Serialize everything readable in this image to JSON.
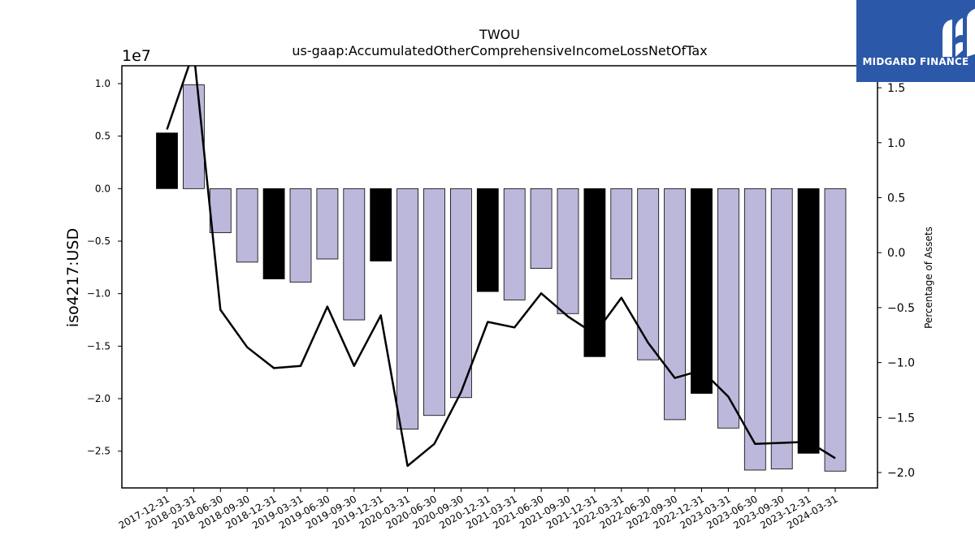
{
  "brand": {
    "name": "MIDGARD FINANCE",
    "bg_color": "#2b58a8"
  },
  "chart_data": {
    "type": "bar",
    "title": "TWOU",
    "subtitle": "us-gaap:AccumulatedOtherComprehensiveIncomeLossNetOfTax",
    "ylabel": "iso4217:USD",
    "y2label": "Percentage of Assets",
    "y_offset_label": "1e7",
    "ylim": [
      -28500000.0,
      11700000.0
    ],
    "y2lim": [
      -2.14,
      1.7
    ],
    "yticks": [
      -25000000.0,
      -20000000.0,
      -15000000.0,
      -10000000.0,
      -5000000.0,
      0,
      5000000.0,
      10000000.0
    ],
    "ytick_labels": [
      "−2.5",
      "−2.0",
      "−1.5",
      "−1.0",
      "−0.5",
      "0.0",
      "0.5",
      "1.0"
    ],
    "y2ticks": [
      -2.0,
      -1.5,
      -1.0,
      -0.5,
      0.0,
      0.5,
      1.0,
      1.5
    ],
    "y2tick_labels": [
      "−2.0",
      "−1.5",
      "−1.0",
      "−0.5",
      "0.0",
      "0.5",
      "1.0",
      "1.5"
    ],
    "categories": [
      "2017-12-31",
      "2018-03-31",
      "2018-06-30",
      "2018-09-30",
      "2018-12-31",
      "2019-03-31",
      "2019-06-30",
      "2019-09-30",
      "2019-12-31",
      "2020-03-31",
      "2020-06-30",
      "2020-09-30",
      "2020-12-31",
      "2021-03-31",
      "2021-06-30",
      "2021-09-30",
      "2021-12-31",
      "2022-03-31",
      "2022-06-30",
      "2022-09-30",
      "2022-12-31",
      "2023-03-31",
      "2023-06-30",
      "2023-09-30",
      "2023-12-31",
      "2024-03-31"
    ],
    "values": [
      5300000,
      9900000,
      -4200000,
      -7000000,
      -8600000,
      -8900000,
      -6700000,
      -12500000,
      -6900000,
      -22900000,
      -21600000,
      -19900000,
      -9800000,
      -10600000,
      -7600000,
      -11900000,
      -16000000,
      -8600000,
      -16300000,
      -22000000,
      -19500000,
      -22800000,
      -26800000,
      -26700000,
      -25200000,
      -26900000
    ],
    "bar_colors": [
      "#000000",
      "#bcb8db",
      "#bcb8db",
      "#bcb8db",
      "#000000",
      "#bcb8db",
      "#bcb8db",
      "#bcb8db",
      "#000000",
      "#bcb8db",
      "#bcb8db",
      "#bcb8db",
      "#000000",
      "#bcb8db",
      "#bcb8db",
      "#bcb8db",
      "#000000",
      "#bcb8db",
      "#bcb8db",
      "#bcb8db",
      "#000000",
      "#bcb8db",
      "#bcb8db",
      "#bcb8db",
      "#000000",
      "#bcb8db"
    ],
    "line_series": [
      1.12,
      1.83,
      -0.52,
      -0.86,
      -1.05,
      -1.03,
      -0.49,
      -1.03,
      -0.57,
      -1.94,
      -1.74,
      -1.27,
      -0.63,
      -0.68,
      -0.37,
      -0.58,
      -0.74,
      -0.41,
      -0.82,
      -1.14,
      -1.07,
      -1.31,
      -1.74,
      -1.73,
      -1.72,
      -1.87
    ],
    "line_color": "#000000"
  }
}
